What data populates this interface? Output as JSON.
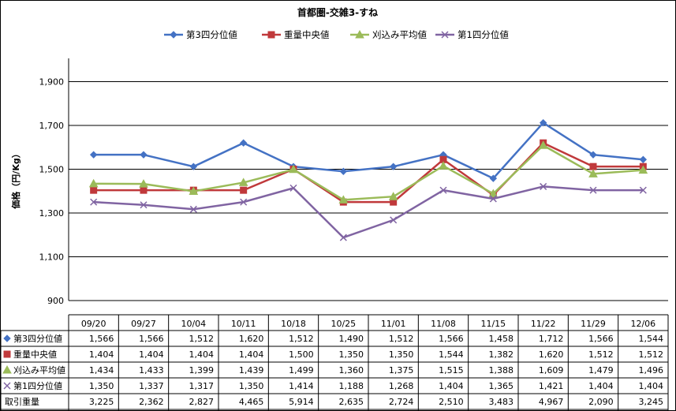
{
  "chart_data": {
    "type": "line",
    "title": "首都圏-交雑3-すね",
    "ylabel": "価格（円/Kg）",
    "xlabel": "",
    "ylim": [
      900,
      2100
    ],
    "yticks": [
      "900",
      "1,100",
      "1,300",
      "1,500",
      "1,700",
      "1,900"
    ],
    "ytick_values": [
      900,
      1100,
      1300,
      1500,
      1700,
      1900
    ],
    "grid": true,
    "legend_position": "top",
    "categories": [
      "09/20",
      "09/27",
      "10/04",
      "10/11",
      "10/18",
      "10/25",
      "11/01",
      "11/08",
      "11/15",
      "11/22",
      "11/29",
      "12/06"
    ],
    "series": [
      {
        "name": "第3四分位値",
        "color": "#4472C4",
        "marker": "diamond",
        "values": [
          1566,
          1566,
          1512,
          1620,
          1512,
          1490,
          1512,
          1566,
          1458,
          1712,
          1566,
          1544
        ],
        "labels": [
          "1,566",
          "1,566",
          "1,512",
          "1,620",
          "1,512",
          "1,490",
          "1,512",
          "1,566",
          "1,458",
          "1,712",
          "1,566",
          "1,544"
        ]
      },
      {
        "name": "重量中央値",
        "color": "#C0393B",
        "marker": "square",
        "values": [
          1404,
          1404,
          1404,
          1404,
          1500,
          1350,
          1350,
          1544,
          1382,
          1620,
          1512,
          1512
        ],
        "labels": [
          "1,404",
          "1,404",
          "1,404",
          "1,404",
          "1,500",
          "1,350",
          "1,350",
          "1,544",
          "1,382",
          "1,620",
          "1,512",
          "1,512"
        ]
      },
      {
        "name": "刈込み平均値",
        "color": "#9BBB59",
        "marker": "triangle",
        "values": [
          1434,
          1433,
          1399,
          1439,
          1499,
          1360,
          1375,
          1515,
          1388,
          1609,
          1479,
          1496
        ],
        "labels": [
          "1,434",
          "1,433",
          "1,399",
          "1,439",
          "1,499",
          "1,360",
          "1,375",
          "1,515",
          "1,388",
          "1,609",
          "1,479",
          "1,496"
        ]
      },
      {
        "name": "第1四分位値",
        "color": "#8064A2",
        "marker": "x",
        "values": [
          1350,
          1337,
          1317,
          1350,
          1414,
          1188,
          1268,
          1404,
          1365,
          1421,
          1404,
          1404
        ],
        "labels": [
          "1,350",
          "1,337",
          "1,317",
          "1,350",
          "1,414",
          "1,188",
          "1,268",
          "1,404",
          "1,365",
          "1,421",
          "1,404",
          "1,404"
        ]
      }
    ],
    "extra_rows": [
      {
        "name": "取引重量",
        "values": [
          3225,
          2362,
          2827,
          4465,
          5914,
          2635,
          2724,
          2510,
          3483,
          4967,
          2090,
          3245
        ],
        "labels": [
          "3,225",
          "2,362",
          "2,827",
          "4,465",
          "5,914",
          "2,635",
          "2,724",
          "2,510",
          "3,483",
          "4,967",
          "2,090",
          "3,245"
        ]
      }
    ]
  }
}
